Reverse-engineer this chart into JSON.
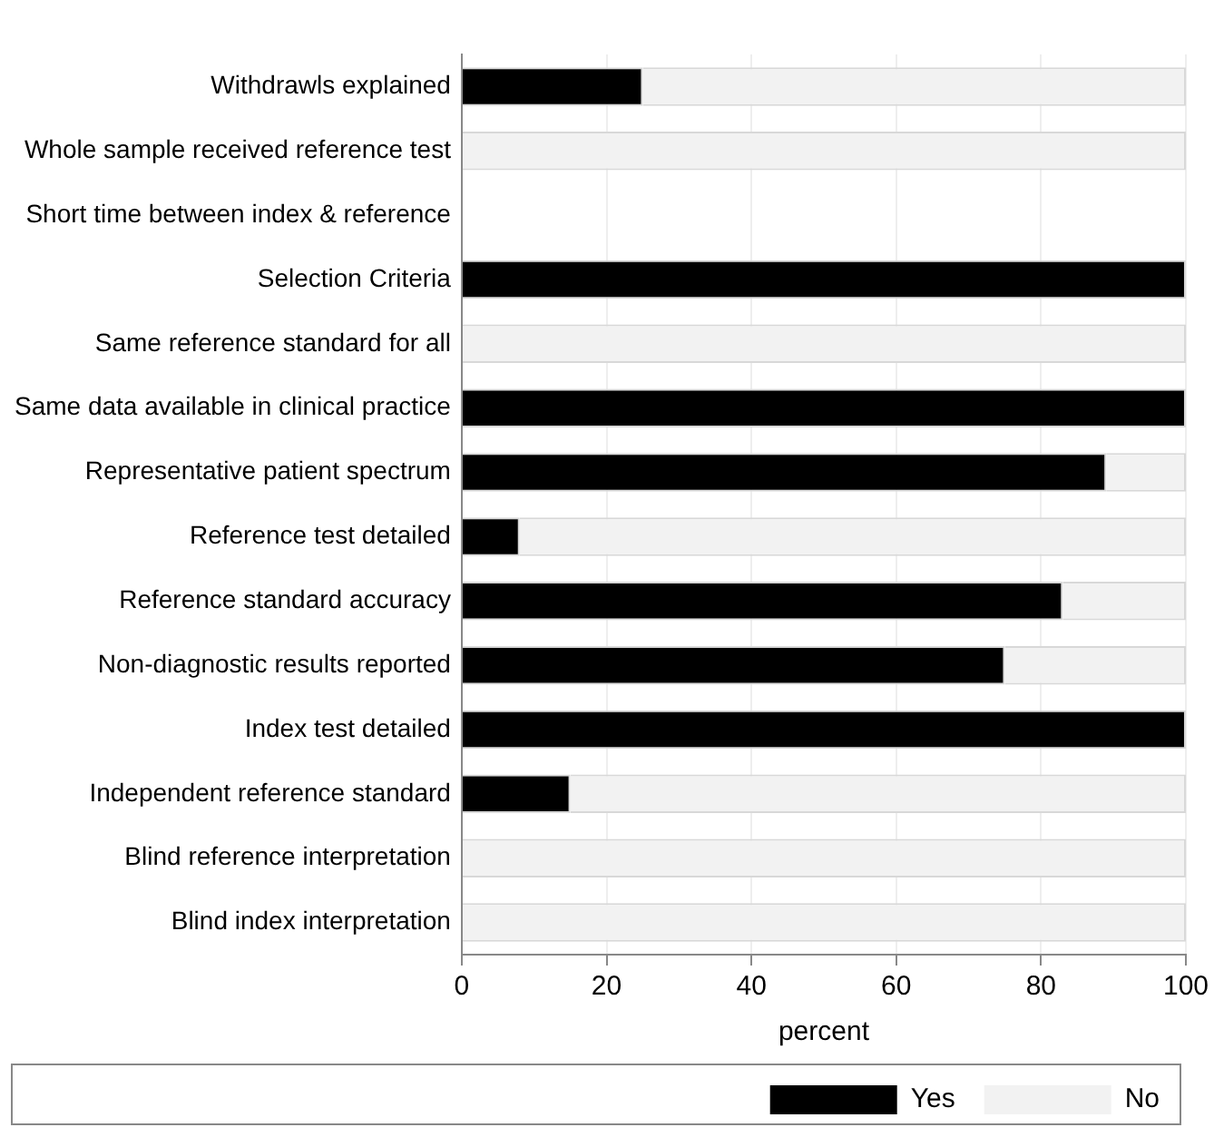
{
  "chart_data": {
    "type": "bar",
    "orientation": "horizontal",
    "stacked": true,
    "categories": [
      "Withdrawls explained",
      "Whole sample received reference test",
      "Short time between index & reference",
      "Selection Criteria",
      "Same reference standard for all",
      "Same data available in clinical practice",
      "Representative patient spectrum",
      "Reference test detailed",
      "Reference standard accuracy",
      "Non-diagnostic results reported",
      "Index test detailed",
      "Independent reference standard",
      "Blind reference interpretation",
      "Blind index interpretation"
    ],
    "series": [
      {
        "name": "Yes",
        "color": "#000000",
        "values": [
          25,
          0,
          null,
          100,
          0,
          100,
          89,
          8,
          83,
          75,
          100,
          15,
          0,
          0
        ]
      },
      {
        "name": "No",
        "color": "#f2f2f2",
        "values": [
          75,
          100,
          null,
          0,
          100,
          0,
          11,
          92,
          17,
          25,
          0,
          85,
          100,
          100
        ]
      }
    ],
    "xlim": [
      0,
      100
    ],
    "xticks": [
      0,
      20,
      40,
      60,
      80,
      100
    ],
    "xlabel": "percent",
    "grid": "x",
    "legend": "bottom"
  }
}
